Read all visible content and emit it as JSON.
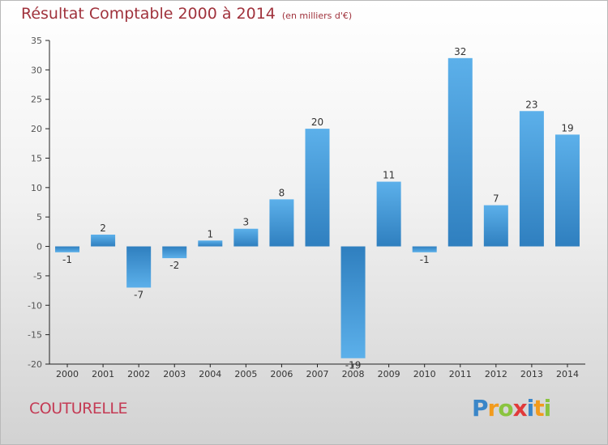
{
  "header": {
    "title": "Résultat Comptable 2000 à 2014",
    "subtitle": "(en milliers d'€)"
  },
  "footer": {
    "commune": "COUTURELLE",
    "logo": "Proxiti"
  },
  "colors": {
    "title": "#a0323c",
    "bar_dark": "#2f7fbf",
    "bar_light": "#5cb0ea",
    "commune": "#c43a54"
  },
  "chart_data": {
    "type": "bar",
    "categories": [
      "2000",
      "2001",
      "2002",
      "2003",
      "2004",
      "2005",
      "2006",
      "2007",
      "2008",
      "2009",
      "2010",
      "2011",
      "2012",
      "2013",
      "2014"
    ],
    "values": [
      -1,
      2,
      -7,
      -2,
      1,
      3,
      8,
      20,
      -19,
      11,
      -1,
      32,
      7,
      23,
      19
    ],
    "data_labels": [
      "-1",
      "2",
      "-7",
      "-2",
      "1",
      "3",
      "8",
      "20",
      "-19",
      "11",
      "-1",
      "32",
      "7",
      "23",
      "19"
    ],
    "ylim": [
      -20,
      35
    ],
    "yticks": [
      -20,
      -15,
      -10,
      -5,
      0,
      5,
      10,
      15,
      20,
      25,
      30,
      35
    ],
    "grid": false,
    "xlabel": "",
    "ylabel": ""
  }
}
